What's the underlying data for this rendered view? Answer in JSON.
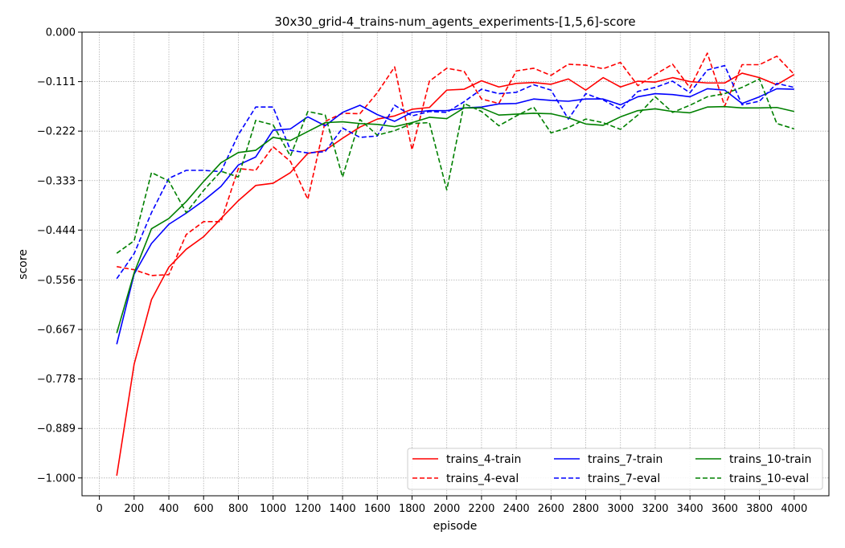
{
  "chart_data": {
    "type": "line",
    "title": "30x30_grid-4_trains-num_agents_experiments-[1,5,6]-score",
    "xlabel": "episode",
    "ylabel": "score",
    "xlim": [
      -100,
      4200
    ],
    "ylim": [
      -1.04,
      0.0
    ],
    "x_ticks": [
      0,
      200,
      400,
      600,
      800,
      1000,
      1200,
      1400,
      1600,
      1800,
      2000,
      2200,
      2400,
      2600,
      2800,
      3000,
      3200,
      3400,
      3600,
      3800,
      4000
    ],
    "y_ticks": [
      0.0,
      -0.111,
      -0.222,
      -0.333,
      -0.444,
      -0.556,
      -0.667,
      -0.778,
      -0.889,
      -1.0
    ],
    "y_tick_labels": [
      "0.000",
      "−0.111",
      "−0.222",
      "−0.333",
      "−0.444",
      "−0.556",
      "−0.667",
      "−0.778",
      "−0.889",
      "−1.000"
    ],
    "x_tick_labels": [
      "0",
      "200",
      "400",
      "600",
      "800",
      "1000",
      "1200",
      "1400",
      "1600",
      "1800",
      "2000",
      "2200",
      "2400",
      "2600",
      "2800",
      "3000",
      "3200",
      "3400",
      "3600",
      "3800",
      "4000"
    ],
    "grid": true,
    "legend_position": "bottom-right",
    "x": [
      100,
      200,
      300,
      400,
      500,
      600,
      700,
      800,
      900,
      1000,
      1100,
      1200,
      1300,
      1400,
      1500,
      1600,
      1700,
      1800,
      1900,
      2000,
      2100,
      2200,
      2300,
      2400,
      2500,
      2600,
      2700,
      2800,
      2900,
      3000,
      3100,
      3200,
      3300,
      3400,
      3500,
      3600,
      3700,
      3800,
      3900,
      4000
    ],
    "series": [
      {
        "name": "trains_4-train",
        "color": "#ff0000",
        "dash": "solid",
        "values": [
          -0.995,
          -0.745,
          -0.6,
          -0.527,
          -0.487,
          -0.459,
          -0.418,
          -0.378,
          -0.344,
          -0.339,
          -0.315,
          -0.272,
          -0.265,
          -0.238,
          -0.213,
          -0.195,
          -0.188,
          -0.173,
          -0.169,
          -0.13,
          -0.128,
          -0.109,
          -0.123,
          -0.115,
          -0.113,
          -0.117,
          -0.105,
          -0.13,
          -0.102,
          -0.123,
          -0.11,
          -0.112,
          -0.102,
          -0.111,
          -0.114,
          -0.114,
          -0.092,
          -0.102,
          -0.118,
          -0.095
        ]
      },
      {
        "name": "trains_4-eval",
        "color": "#ff0000",
        "dash": "dashed",
        "values": [
          -0.526,
          -0.533,
          -0.546,
          -0.544,
          -0.454,
          -0.425,
          -0.425,
          -0.306,
          -0.31,
          -0.257,
          -0.29,
          -0.375,
          -0.2,
          -0.182,
          -0.183,
          -0.136,
          -0.078,
          -0.264,
          -0.11,
          -0.081,
          -0.088,
          -0.15,
          -0.16,
          -0.087,
          -0.081,
          -0.097,
          -0.072,
          -0.074,
          -0.082,
          -0.068,
          -0.12,
          -0.095,
          -0.072,
          -0.125,
          -0.047,
          -0.166,
          -0.073,
          -0.073,
          -0.054,
          -0.095
        ]
      },
      {
        "name": "trains_7-train",
        "color": "#0000ff",
        "dash": "solid",
        "values": [
          -0.7,
          -0.543,
          -0.474,
          -0.431,
          -0.406,
          -0.378,
          -0.346,
          -0.298,
          -0.28,
          -0.22,
          -0.217,
          -0.19,
          -0.21,
          -0.18,
          -0.164,
          -0.185,
          -0.2,
          -0.18,
          -0.176,
          -0.176,
          -0.17,
          -0.168,
          -0.161,
          -0.16,
          -0.15,
          -0.153,
          -0.155,
          -0.15,
          -0.15,
          -0.163,
          -0.145,
          -0.138,
          -0.14,
          -0.145,
          -0.127,
          -0.13,
          -0.16,
          -0.145,
          -0.127,
          -0.128
        ]
      },
      {
        "name": "trains_7-eval",
        "color": "#0000ff",
        "dash": "dashed",
        "values": [
          -0.553,
          -0.497,
          -0.405,
          -0.328,
          -0.31,
          -0.31,
          -0.313,
          -0.23,
          -0.168,
          -0.168,
          -0.265,
          -0.271,
          -0.268,
          -0.215,
          -0.236,
          -0.233,
          -0.164,
          -0.188,
          -0.178,
          -0.18,
          -0.156,
          -0.128,
          -0.138,
          -0.135,
          -0.118,
          -0.13,
          -0.195,
          -0.138,
          -0.152,
          -0.173,
          -0.133,
          -0.124,
          -0.11,
          -0.136,
          -0.085,
          -0.075,
          -0.163,
          -0.155,
          -0.115,
          -0.124
        ]
      },
      {
        "name": "trains_10-train",
        "color": "#008000",
        "dash": "solid",
        "values": [
          -0.675,
          -0.54,
          -0.441,
          -0.418,
          -0.38,
          -0.335,
          -0.293,
          -0.27,
          -0.265,
          -0.236,
          -0.243,
          -0.223,
          -0.203,
          -0.201,
          -0.205,
          -0.207,
          -0.212,
          -0.203,
          -0.191,
          -0.194,
          -0.17,
          -0.17,
          -0.186,
          -0.184,
          -0.182,
          -0.183,
          -0.192,
          -0.206,
          -0.209,
          -0.19,
          -0.176,
          -0.172,
          -0.178,
          -0.181,
          -0.168,
          -0.167,
          -0.17,
          -0.17,
          -0.169,
          -0.178
        ]
      },
      {
        "name": "trains_10-eval",
        "color": "#008000",
        "dash": "dashed",
        "values": [
          -0.496,
          -0.468,
          -0.315,
          -0.334,
          -0.405,
          -0.355,
          -0.312,
          -0.325,
          -0.198,
          -0.208,
          -0.278,
          -0.178,
          -0.186,
          -0.325,
          -0.196,
          -0.231,
          -0.221,
          -0.205,
          -0.203,
          -0.354,
          -0.16,
          -0.178,
          -0.21,
          -0.188,
          -0.168,
          -0.226,
          -0.214,
          -0.195,
          -0.203,
          -0.218,
          -0.186,
          -0.145,
          -0.18,
          -0.164,
          -0.145,
          -0.138,
          -0.124,
          -0.105,
          -0.205,
          -0.217
        ]
      }
    ]
  }
}
